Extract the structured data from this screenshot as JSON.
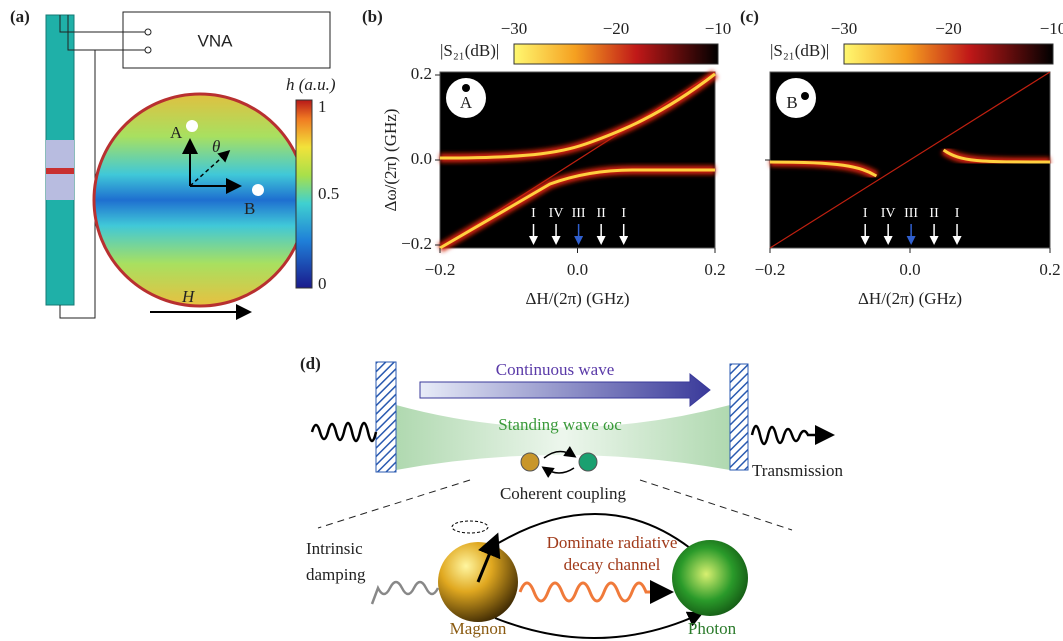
{
  "panels": [
    {
      "label": "(a)",
      "instrument": "VNA",
      "colorbar_title": "h (a.u.)",
      "colorbar_ticks": [
        "1",
        "0.5",
        "0"
      ],
      "points": [
        "A",
        "B"
      ],
      "angle": "θ",
      "field": "H"
    },
    {
      "label": "(b)",
      "colorbar_title": "|S₂₁(dB)|",
      "colorbar_ticks": [
        "−30",
        "−20",
        "−10"
      ],
      "y_label": "Δω/(2π) (GHz)",
      "x_label": "ΔH/(2π) (GHz)",
      "yticks": [
        "0.2",
        "0.0",
        "−0.2"
      ],
      "xticks": [
        "−0.2",
        "0.0",
        "0.2"
      ],
      "point": "A",
      "arrows": [
        "I",
        "IV",
        "III",
        "II",
        "I"
      ]
    },
    {
      "label": "(c)",
      "colorbar_title": "|S₂₁(dB)|",
      "colorbar_ticks": [
        "−30",
        "−20",
        "−10"
      ],
      "x_label": "ΔH/(2π) (GHz)",
      "xticks": [
        "−0.2",
        "0.0",
        "0.2"
      ],
      "point": "B",
      "arrows": [
        "I",
        "IV",
        "III",
        "II",
        "I"
      ]
    },
    {
      "label": "(d)",
      "continuous": "Continuous wave",
      "standing": "Standing wave ωc",
      "transmission": "Transmission",
      "coupling": "Coherent coupling",
      "damping": [
        "Intrinsic",
        "damping"
      ],
      "radiative": [
        "Dominate radiative",
        "decay channel"
      ],
      "magnon": "Magnon",
      "photon": "Photon"
    }
  ]
}
